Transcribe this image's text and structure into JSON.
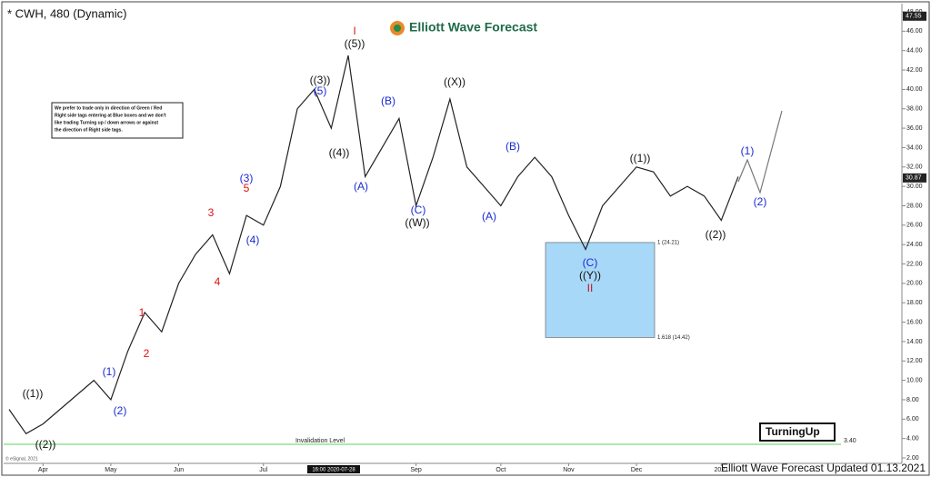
{
  "chart_data": {
    "type": "line",
    "title": "* CWH, 480 (Dynamic)",
    "brand": "Elliott Wave Forecast",
    "footer": "Elliott Wave Forecast Updated 01.13.2021",
    "copyright": "© eSignal, 2021",
    "crosshair_label": "16:00 2020-07-28",
    "badge": "TurningUp",
    "note": [
      "We prefer to trade only in direction of Green / Red",
      "Right side tags entering at Blue boxes and we don't",
      "like trading Turning up / down arrows or against",
      "the direction of Right side tags."
    ],
    "categories": [
      null,
      null,
      "Apr",
      null,
      null,
      null,
      "May",
      null,
      null,
      null,
      "Jun",
      null,
      null,
      null,
      null,
      "Jul",
      null,
      null,
      null,
      null,
      null,
      null,
      null,
      null,
      "Sep",
      null,
      null,
      null,
      null,
      "Oct",
      null,
      null,
      null,
      "Nov",
      null,
      null,
      null,
      "Dec",
      null,
      null,
      null,
      null,
      "2021",
      null
    ],
    "series": [
      {
        "color": "#222222",
        "values": [
          7,
          4.5,
          5.5,
          7,
          8.5,
          10,
          8,
          13,
          17,
          15,
          20,
          23,
          25,
          21,
          27,
          26,
          30,
          38,
          40,
          36,
          43.5,
          31,
          34,
          37,
          28,
          33,
          39,
          32,
          30,
          28,
          31,
          33,
          31,
          27,
          23.5,
          28,
          30,
          32,
          31.5,
          29,
          30,
          29,
          26.5,
          31
        ]
      }
    ],
    "ylim": [
      2,
      48
    ],
    "yticks": [
      {
        "value": 2,
        "label": "2.00"
      },
      {
        "value": 4,
        "label": "4.00"
      },
      {
        "value": 6,
        "label": "6.00"
      },
      {
        "value": 8,
        "label": "8.00"
      },
      {
        "value": 10,
        "label": "10.00"
      },
      {
        "value": 12,
        "label": "12.00"
      },
      {
        "value": 14,
        "label": "14.00"
      },
      {
        "value": 16,
        "label": "16.00"
      },
      {
        "value": 18,
        "label": "18.00"
      },
      {
        "value": 20,
        "label": "20.00"
      },
      {
        "value": 22,
        "label": "22.00"
      },
      {
        "value": 24,
        "label": "24.00"
      },
      {
        "value": 26,
        "label": "26.00"
      },
      {
        "value": 28,
        "label": "28.00"
      },
      {
        "value": 30,
        "label": "30.00"
      },
      {
        "value": 32,
        "label": "32.00"
      },
      {
        "value": 34,
        "label": "34.00"
      },
      {
        "value": 36,
        "label": "36.00"
      },
      {
        "value": 38,
        "label": "38.00"
      },
      {
        "value": 40,
        "label": "40.00"
      },
      {
        "value": 42,
        "label": "42.00"
      },
      {
        "value": 44,
        "label": "44.00"
      },
      {
        "value": 46,
        "label": "46.00"
      },
      {
        "value": 48,
        "label": "48.00"
      }
    ],
    "price_markers": [
      30.87,
      47.55
    ],
    "fib_box": {
      "color": "#a8d8f8",
      "top": 24.21,
      "top_label": "1 (24.21)",
      "bottom": 14.42,
      "bottom_label": "1.618 (14.42)"
    },
    "invalidation": {
      "label": "Invalidation Level",
      "value": 3.4,
      "value_label": "3.40",
      "color": "#5ad65a"
    },
    "annotations": [
      {
        "text": "((1))",
        "color": "#111"
      },
      {
        "text": "((2))",
        "color": "#111"
      },
      {
        "text": "(1)",
        "color": "#1a2ad6"
      },
      {
        "text": "(2)",
        "color": "#1a2ad6"
      },
      {
        "text": "1",
        "color": "#e01010"
      },
      {
        "text": "2",
        "color": "#e01010"
      },
      {
        "text": "3",
        "color": "#e01010"
      },
      {
        "text": "4",
        "color": "#e01010"
      },
      {
        "text": "(3)",
        "color": "#1a2ad6"
      },
      {
        "text": "5",
        "color": "#e01010"
      },
      {
        "text": "(4)",
        "color": "#1a2ad6"
      },
      {
        "text": "((3))",
        "color": "#111"
      },
      {
        "text": "(5)",
        "color": "#1a2ad6"
      },
      {
        "text": "I",
        "color": "#e01010"
      },
      {
        "text": "((5))",
        "color": "#111"
      },
      {
        "text": "((4))",
        "color": "#111"
      },
      {
        "text": "(A)",
        "color": "#1a2ad6"
      },
      {
        "text": "(B)",
        "color": "#1a2ad6"
      },
      {
        "text": "(C)",
        "color": "#1a2ad6"
      },
      {
        "text": "((W))",
        "color": "#111"
      },
      {
        "text": "((X))",
        "color": "#111"
      },
      {
        "text": "(A)",
        "color": "#1a2ad6"
      },
      {
        "text": "(B)",
        "color": "#1a2ad6"
      },
      {
        "text": "(C)",
        "color": "#1a2ad6"
      },
      {
        "text": "((Y))",
        "color": "#111"
      },
      {
        "text": "II",
        "color": "#c01020"
      },
      {
        "text": "((1))",
        "color": "#111"
      },
      {
        "text": "((2))",
        "color": "#111"
      },
      {
        "text": "(1)",
        "color": "#1a2ad6"
      },
      {
        "text": "(2)",
        "color": "#1a2ad6"
      }
    ]
  }
}
